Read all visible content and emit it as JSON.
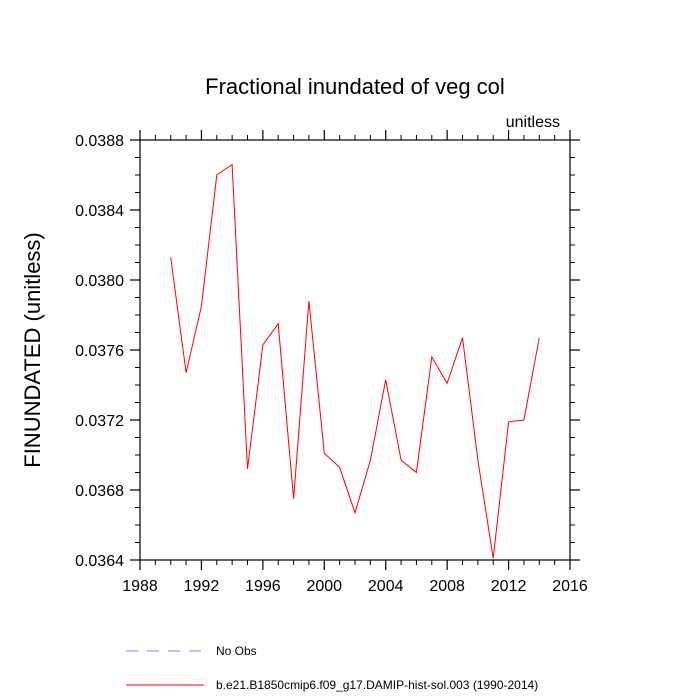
{
  "chart_data": {
    "type": "line",
    "title": "Fractional inundated of veg col",
    "units_label": "unitless",
    "ylabel": "FINUNDATED  (unitless)",
    "xlabel": "",
    "xlim": [
      1988,
      2016
    ],
    "ylim": [
      0.0364,
      0.0388
    ],
    "x_ticks": [
      1988,
      1992,
      1996,
      2000,
      2004,
      2008,
      2012,
      2016
    ],
    "x_tick_labels": [
      "1988",
      "1992",
      "1996",
      "2000",
      "2004",
      "2008",
      "2012",
      "2016"
    ],
    "y_ticks": [
      0.0364,
      0.0368,
      0.0372,
      0.0376,
      0.038,
      0.0384,
      0.0388
    ],
    "y_tick_labels": [
      "0.0364",
      "0.0368",
      "0.0372",
      "0.0376",
      "0.0380",
      "0.0384",
      "0.0388"
    ],
    "grid": false,
    "legend_position": "bottom",
    "series": [
      {
        "name": "b.e21.B1850cmip6.f09_g17.DAMIP-hist-sol.003 (1990-2014)",
        "color": "#ff0000",
        "dash": "solid",
        "x": [
          1990,
          1991,
          1992,
          1993,
          1994,
          1995,
          1996,
          1997,
          1998,
          1999,
          2000,
          2001,
          2002,
          2003,
          2004,
          2005,
          2006,
          2007,
          2008,
          2009,
          2010,
          2011,
          2012,
          2013,
          2014
        ],
        "y": [
          0.03813,
          0.03747,
          0.03785,
          0.0386,
          0.03866,
          0.03692,
          0.03763,
          0.03775,
          0.03675,
          0.03788,
          0.03701,
          0.03693,
          0.03667,
          0.03697,
          0.03743,
          0.03697,
          0.0369,
          0.03756,
          0.03741,
          0.03767,
          0.03697,
          0.03641,
          0.03719,
          0.0372,
          0.03767
        ]
      }
    ],
    "legend": [
      {
        "label": "No Obs",
        "color": "#8080ff",
        "dash": "dashed"
      },
      {
        "label": "b.e21.B1850cmip6.f09_g17.DAMIP-hist-sol.003 (1990-2014)",
        "color": "#ff0000",
        "dash": "solid"
      }
    ]
  }
}
